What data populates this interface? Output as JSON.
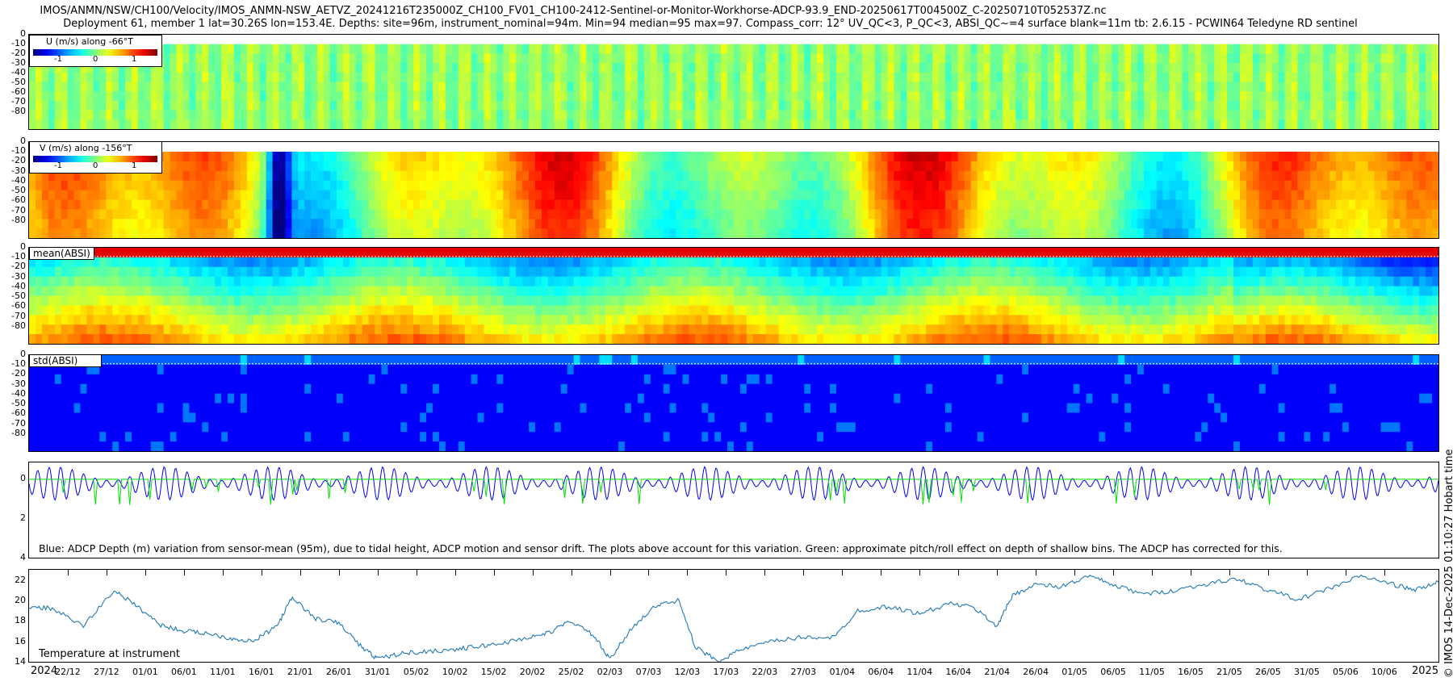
{
  "title_line1": "IMOS/ANMN/NSW/CH100/Velocity/IMOS_ANMN-NSW_AETVZ_20241216T235000Z_CH100_FV01_CH100-2412-Sentinel-or-Monitor-Workhorse-ADCP-93.9_END-20250617T004500Z_C-20250710T052537Z.nc",
  "title_line2": "Deployment 61, member 1 lat=30.26S lon=153.4E. Depths: site=96m, instrument_nominal=94m. Min=94 median=95 max=97. Compass_corr: 12° UV_QC<3, P_QC<3, ABSI_QC~=4 surface blank=11m tb: 2.6.15 - PCWIN64 Teledyne RD sentinel",
  "credit": "© IMOS 14-Dec-2025 01:10:27 Hobart time",
  "chart_data": [
    {
      "type": "heatmap",
      "label": "U (m/s) along -66°T",
      "colorbar_ticks": [
        "-1",
        "0",
        "1"
      ],
      "yticks": [
        "0",
        "-10",
        "-20",
        "-30",
        "-40",
        "-50",
        "-60",
        "-70",
        "-80"
      ],
      "colormap": "jet"
    },
    {
      "type": "heatmap",
      "label": "V (m/s) along -156°T",
      "colorbar_ticks": [
        "-1",
        "0",
        "1"
      ],
      "yticks": [
        "0",
        "-10",
        "-20",
        "-30",
        "-40",
        "-50",
        "-60",
        "-70",
        "-80"
      ],
      "colormap": "jet"
    },
    {
      "type": "heatmap",
      "label": "mean(ABSI)",
      "yticks": [
        "0",
        "-10",
        "-20",
        "-30",
        "-40",
        "-50",
        "-60",
        "-70",
        "-80"
      ],
      "colormap": "jet"
    },
    {
      "type": "heatmap",
      "label": "std(ABSI)",
      "yticks": [
        "0",
        "-10",
        "-20",
        "-30",
        "-40",
        "-50",
        "-60",
        "-70",
        "-80"
      ],
      "colormap": "jet"
    },
    {
      "type": "line",
      "yticks": [
        "0",
        "2",
        "4"
      ],
      "ylim": [
        4,
        -0.8
      ],
      "series": [
        {
          "color": "#0000ff"
        },
        {
          "color": "#00e000"
        }
      ],
      "note": "Blue: ADCP Depth (m) variation from sensor-mean (95m), due to tidal height, ADCP motion and sensor drift. The plots above account for this variation. Green: approximate pitch/roll effect on depth of shallow bins. The ADCP has corrected for this."
    },
    {
      "type": "line",
      "label": "Temperature at instrument",
      "yticks": [
        "22",
        "20",
        "18",
        "16",
        "14"
      ],
      "ylim": [
        14,
        23
      ],
      "series": [
        {
          "color": "#1f77b4",
          "x": [
            "2024-12-17",
            "2024-12-20",
            "2024-12-24",
            "2024-12-28",
            "2024-12-31",
            "2025-01-03",
            "2025-01-06",
            "2025-01-09",
            "2025-01-12",
            "2025-01-15",
            "2025-01-18",
            "2025-01-20",
            "2025-01-23",
            "2025-01-26",
            "2025-01-29",
            "2025-01-31",
            "2025-02-03",
            "2025-02-06",
            "2025-02-10",
            "2025-02-13",
            "2025-02-16",
            "2025-02-19",
            "2025-02-22",
            "2025-02-25",
            "2025-02-28",
            "2025-03-02",
            "2025-03-05",
            "2025-03-08",
            "2025-03-11",
            "2025-03-13",
            "2025-03-16",
            "2025-03-19",
            "2025-03-23",
            "2025-03-27",
            "2025-03-31",
            "2025-04-03",
            "2025-04-07",
            "2025-04-11",
            "2025-04-15",
            "2025-04-18",
            "2025-04-21",
            "2025-04-23",
            "2025-04-26",
            "2025-04-29",
            "2025-05-03",
            "2025-05-06",
            "2025-05-10",
            "2025-05-14",
            "2025-05-18",
            "2025-05-22",
            "2025-05-26",
            "2025-05-30",
            "2025-06-03",
            "2025-06-07",
            "2025-06-11",
            "2025-06-14",
            "2025-06-17"
          ],
          "y": [
            19.4,
            19.2,
            17.5,
            21.0,
            19.4,
            17.6,
            17.0,
            16.8,
            16.3,
            16.0,
            17.5,
            20.3,
            18.2,
            17.8,
            15.4,
            14.3,
            14.8,
            15.0,
            15.2,
            15.5,
            15.8,
            16.3,
            16.8,
            18.0,
            16.5,
            14.2,
            17.5,
            19.5,
            20.0,
            15.4,
            14.1,
            15.2,
            16.0,
            16.4,
            16.4,
            19.0,
            19.4,
            18.7,
            19.7,
            19.3,
            17.5,
            20.5,
            21.6,
            21.3,
            22.4,
            21.5,
            20.6,
            21.0,
            21.6,
            22.1,
            21.0,
            20.1,
            21.2,
            22.4,
            21.6,
            21.0,
            21.8
          ]
        }
      ]
    }
  ],
  "xaxis": {
    "ticks": [
      "22/12",
      "27/12",
      "01/01",
      "06/01",
      "11/01",
      "16/01",
      "21/01",
      "26/01",
      "31/01",
      "05/02",
      "10/02",
      "15/02",
      "20/02",
      "25/02",
      "02/03",
      "07/03",
      "12/03",
      "17/03",
      "22/03",
      "27/03",
      "01/04",
      "06/04",
      "11/04",
      "16/04",
      "21/04",
      "26/04",
      "01/05",
      "06/05",
      "11/05",
      "16/05",
      "21/05",
      "26/05",
      "31/05",
      "05/06",
      "10/06"
    ],
    "start": "2024-12-17",
    "end": "2025-06-17",
    "year_left": "2024",
    "year_right": "2025"
  }
}
